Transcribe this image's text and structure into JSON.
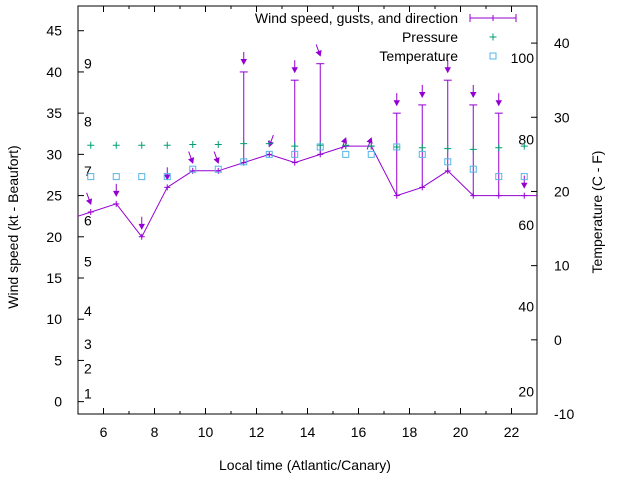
{
  "chart_data": {
    "type": "line",
    "title": "",
    "xlabel": "Local time (Atlantic/Canary)",
    "ylabel": "Wind speed (kt - Beaufort)",
    "y2label": "Temperature (C - F)",
    "xlim": [
      5,
      23
    ],
    "ylim": [
      -1.5,
      48
    ],
    "y2lim": [
      -10,
      45
    ],
    "x_ticks": [
      6,
      8,
      10,
      12,
      14,
      16,
      18,
      20,
      22
    ],
    "y_ticks": [
      0,
      5,
      10,
      15,
      20,
      25,
      30,
      35,
      40,
      45
    ],
    "y2_ticks": [
      -10,
      0,
      10,
      20,
      30,
      40
    ],
    "beaufort_labels": [
      {
        "label": "1",
        "y": 1
      },
      {
        "label": "2",
        "y": 4
      },
      {
        "label": "3",
        "y": 7
      },
      {
        "label": "4",
        "y": 11
      },
      {
        "label": "5",
        "y": 17
      },
      {
        "label": "6",
        "y": 22
      },
      {
        "label": "7",
        "y": 28
      },
      {
        "label": "8",
        "y": 34
      },
      {
        "label": "9",
        "y": 41
      }
    ],
    "fahrenheit_labels": [
      {
        "label": "20",
        "y2": -7
      },
      {
        "label": "40",
        "y2": 4.5
      },
      {
        "label": "60",
        "y2": 15.5
      },
      {
        "label": "80",
        "y2": 27
      },
      {
        "label": "100",
        "y2": 38
      }
    ],
    "legend_position": "top-right",
    "series": [
      {
        "name": "Wind speed, gusts, and direction",
        "kind": "line-errorbar",
        "color": "#9400d3",
        "x": [
          5.5,
          6.5,
          7.5,
          8.5,
          9.5,
          10.5,
          11.5,
          12.5,
          13.5,
          14.5,
          15.5,
          16.5,
          17.5,
          18.5,
          19.5,
          20.5,
          21.5,
          22.5
        ],
        "y": [
          23,
          24,
          20,
          26,
          28,
          28,
          29,
          30,
          29,
          30,
          31,
          31,
          25,
          26,
          28,
          25,
          25,
          25
        ],
        "gust": [
          23,
          24,
          20,
          26,
          28,
          28,
          40,
          30,
          39,
          41,
          31,
          31,
          35,
          36,
          39,
          36,
          35,
          25
        ],
        "direction_deg": [
          340,
          0,
          0,
          0,
          340,
          340,
          0,
          20,
          0,
          340,
          200,
          200,
          0,
          0,
          0,
          0,
          0,
          0
        ]
      },
      {
        "name": "Pressure",
        "kind": "points-plus",
        "color": "#009e73",
        "x": [
          5.5,
          6.5,
          7.5,
          8.5,
          9.5,
          10.5,
          11.5,
          12.5,
          13.5,
          14.5,
          15.5,
          16.5,
          17.5,
          18.5,
          19.5,
          20.5,
          21.5,
          22.5
        ],
        "y": [
          31.1,
          31.1,
          31.1,
          31.1,
          31.2,
          31.2,
          31.3,
          31.3,
          31.0,
          31.1,
          31.1,
          31.0,
          30.9,
          30.8,
          30.7,
          30.6,
          30.8,
          31.0
        ]
      },
      {
        "name": "Temperature",
        "kind": "points-square",
        "color": "#56b4e9",
        "axis": "y2",
        "x": [
          5.5,
          6.5,
          7.5,
          8.5,
          9.5,
          10.5,
          11.5,
          12.5,
          13.5,
          14.5,
          15.5,
          16.5,
          17.5,
          18.5,
          19.5,
          20.5,
          21.5,
          22.5
        ],
        "y": [
          22,
          22,
          22,
          22,
          23,
          23,
          24,
          25,
          25,
          26,
          25,
          25,
          26,
          25,
          24,
          23,
          22,
          22
        ]
      }
    ]
  }
}
